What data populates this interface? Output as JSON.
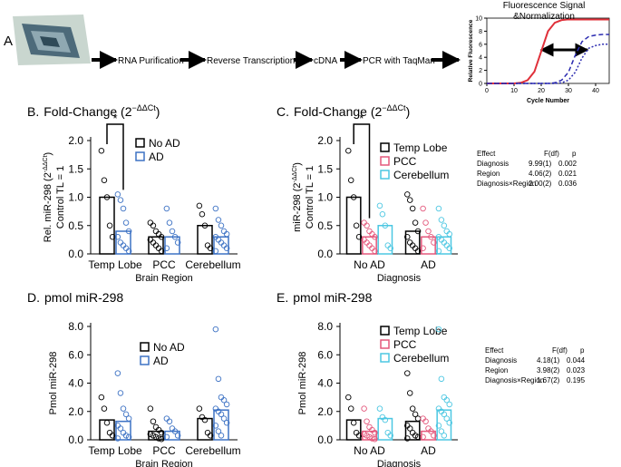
{
  "workflow": {
    "label": "A",
    "steps": [
      "RNA Purification",
      "Reverse Transcription",
      "cDNA",
      "PCR with TaqMan"
    ]
  },
  "chart_data": [
    {
      "type": "line",
      "title": "Fluorescence Signal",
      "subtitle": "&Normalization",
      "xlabel": "Cycle Number",
      "ylabel": "Relative Fluorescence",
      "x": [
        0,
        2.5,
        5,
        7.5,
        10,
        12.5,
        15,
        17.5,
        20,
        22.5,
        25,
        27.5,
        30,
        32.5,
        35,
        37.5,
        40,
        42.5,
        45
      ],
      "xlim": [
        0,
        45
      ],
      "ylim": [
        0,
        10
      ],
      "xticks": [
        0,
        10,
        20,
        30,
        40
      ],
      "yticks": [
        0,
        2,
        4,
        6,
        8,
        10
      ],
      "series": [
        {
          "color": "#e0303a",
          "style": "solid",
          "values": [
            0,
            0,
            0,
            0,
            0,
            0.1,
            0.5,
            1.8,
            4.9,
            8.0,
            9.3,
            9.7,
            9.8,
            9.8,
            9.8,
            9.8,
            9.8,
            9.8,
            9.8
          ]
        },
        {
          "color": "#2b2bb0",
          "style": "dashed",
          "values": [
            0,
            0,
            0,
            0,
            0,
            0,
            0,
            0,
            0,
            0,
            0.1,
            0.5,
            1.7,
            4.3,
            6.4,
            7.2,
            7.4,
            7.5,
            7.5
          ]
        },
        {
          "color": "#2b2bb0",
          "style": "dotted",
          "values": [
            0,
            0,
            0,
            0,
            0,
            0,
            0,
            0,
            0,
            0,
            0,
            0.1,
            0.5,
            1.7,
            3.9,
            5.4,
            5.8,
            6.0,
            6.0
          ]
        }
      ]
    },
    {
      "type": "bar-scatter",
      "panel": "B.",
      "title": "Fold-Change (2",
      "title_superscript": "−ΔΔCt",
      "title_end": ")",
      "ylabel": "Rel. miR-298 (2",
      "ylabel_superscript": "-ΔΔCt",
      "ylabel_end": ")",
      "ylabel2": "Control TL = 1",
      "xlabel": "Brain Region",
      "annotation": "*",
      "categories": [
        "Temp Lobe",
        "PCC",
        "Cerebellum"
      ],
      "ylim": [
        0,
        2
      ],
      "yticks": [
        {
          "value": 0,
          "label": "0.0"
        },
        0.5,
        {
          "value": 1,
          "label": "1.0"
        },
        1.5,
        {
          "value": 2,
          "label": "2.0"
        }
      ],
      "series": [
        {
          "name": "No AD",
          "color": "#000000",
          "values": [
            1.0,
            0.3,
            0.5
          ],
          "points": [
            [
              1.82,
              1.3,
              1.0,
              0.5,
              0.3
            ],
            [
              0.55,
              0.5,
              0.4,
              0.35,
              0.3,
              0.25,
              0.2,
              0.15,
              0.1,
              0.05
            ],
            [
              0.85,
              0.7,
              0.5,
              0.15,
              0.1
            ]
          ]
        },
        {
          "name": "AD",
          "color": "#3d72c4",
          "values": [
            0.4,
            0.3,
            0.3
          ],
          "points": [
            [
              1.05,
              0.95,
              0.8,
              0.55,
              0.4,
              0.3,
              0.2,
              0.15,
              0.1,
              0.05
            ],
            [
              0.8,
              0.55,
              0.4,
              0.3,
              0.2,
              0.1
            ],
            [
              0.8,
              0.6,
              0.5,
              0.4,
              0.35,
              0.3,
              0.25,
              0.2,
              0.15,
              0.1,
              0.05
            ]
          ]
        }
      ]
    },
    {
      "type": "bar-scatter",
      "panel": "C.",
      "title": "Fold-Change (2",
      "title_superscript": "−ΔΔCt",
      "title_end": ")",
      "ylabel": "miR-298 (2",
      "ylabel_superscript": "-ΔΔCt",
      "ylabel_end": ")",
      "ylabel2": "Control TL = 1",
      "xlabel": "Diagnosis",
      "annotation": "*",
      "categories": [
        "No AD",
        "AD"
      ],
      "ylim": [
        0,
        2
      ],
      "yticks": [
        {
          "value": 0,
          "label": "0.0"
        },
        0.5,
        {
          "value": 1,
          "label": "1.0"
        },
        1.5,
        {
          "value": 2,
          "label": "2.0"
        }
      ],
      "series": [
        {
          "name": "Temp Lobe",
          "color": "#000000",
          "values": [
            1.0,
            0.4
          ],
          "points": [
            [
              1.82,
              1.3,
              1.0,
              0.5,
              0.3
            ],
            [
              1.05,
              0.95,
              0.8,
              0.55,
              0.4,
              0.3,
              0.2,
              0.15,
              0.1,
              0.05
            ]
          ]
        },
        {
          "name": "PCC",
          "color": "#e4587c",
          "values": [
            0.3,
            0.3
          ],
          "points": [
            [
              0.55,
              0.5,
              0.4,
              0.35,
              0.3,
              0.25,
              0.2,
              0.15,
              0.1,
              0.05
            ],
            [
              0.8,
              0.55,
              0.4,
              0.3,
              0.2,
              0.1
            ]
          ]
        },
        {
          "name": "Cerebellum",
          "color": "#4cc7e2",
          "values": [
            0.5,
            0.3
          ],
          "points": [
            [
              0.85,
              0.7,
              0.5,
              0.15,
              0.1
            ],
            [
              0.8,
              0.6,
              0.5,
              0.4,
              0.35,
              0.3,
              0.25,
              0.2,
              0.15,
              0.1,
              0.05
            ]
          ]
        }
      ]
    },
    {
      "type": "bar-scatter",
      "panel": "D.",
      "title": "pmol miR-298",
      "ylabel": "Pmol miR-298",
      "xlabel": "Brain Region",
      "categories": [
        "Temp Lobe",
        "PCC",
        "Cerebellum"
      ],
      "ylim": [
        0,
        8
      ],
      "yticks": [
        {
          "value": 0,
          "label": "0.0"
        },
        {
          "value": 2,
          "label": "2.0"
        },
        {
          "value": 4,
          "label": "4.0"
        },
        {
          "value": 6,
          "label": "6.0"
        },
        {
          "value": 8,
          "label": "8.0"
        }
      ],
      "series": [
        {
          "name": "No AD",
          "color": "#000000",
          "values": [
            1.4,
            0.6,
            1.5
          ],
          "points": [
            [
              3.0,
              2.2,
              1.2,
              0.5,
              0.3
            ],
            [
              2.2,
              1.3,
              0.9,
              0.7,
              0.5,
              0.4,
              0.3,
              0.2,
              0.1,
              0.05
            ],
            [
              2.2,
              1.6,
              1.4,
              0.5,
              0.3
            ]
          ]
        },
        {
          "name": "AD",
          "color": "#3d72c4",
          "values": [
            1.3,
            0.6,
            2.1
          ],
          "points": [
            [
              4.7,
              3.3,
              2.2,
              1.8,
              1.5,
              1.0,
              0.8,
              0.5,
              0.3,
              0.2,
              0.1
            ],
            [
              1.5,
              1.3,
              0.8,
              0.6,
              0.3,
              0.2
            ],
            [
              7.8,
              4.3,
              3.0,
              2.8,
              2.5,
              2.2,
              2.0,
              1.8,
              1.5,
              1.2,
              1.0,
              0.6,
              0.3
            ]
          ]
        }
      ]
    },
    {
      "type": "bar-scatter",
      "panel": "E.",
      "title": "pmol miR-298",
      "ylabel": "Pmol miR-298",
      "xlabel": "Diagnosis",
      "categories": [
        "No AD",
        "AD"
      ],
      "ylim": [
        0,
        8
      ],
      "yticks": [
        {
          "value": 0,
          "label": "0.0"
        },
        {
          "value": 2,
          "label": "2.0"
        },
        {
          "value": 4,
          "label": "4.0"
        },
        {
          "value": 6,
          "label": "6.0"
        },
        {
          "value": 8,
          "label": "8.0"
        }
      ],
      "series": [
        {
          "name": "Temp Lobe",
          "color": "#000000",
          "values": [
            1.4,
            1.3
          ],
          "points": [
            [
              3.0,
              2.2,
              1.2,
              0.5,
              0.3
            ],
            [
              4.7,
              3.3,
              2.2,
              1.8,
              1.5,
              1.0,
              0.8,
              0.5,
              0.3,
              0.2,
              0.1
            ]
          ]
        },
        {
          "name": "PCC",
          "color": "#e4587c",
          "values": [
            0.6,
            0.6
          ],
          "points": [
            [
              2.2,
              1.3,
              0.9,
              0.7,
              0.5,
              0.4,
              0.3,
              0.2,
              0.1,
              0.05
            ],
            [
              1.5,
              1.3,
              0.8,
              0.6,
              0.3,
              0.2
            ]
          ]
        },
        {
          "name": "Cerebellum",
          "color": "#4cc7e2",
          "values": [
            1.5,
            2.1
          ],
          "points": [
            [
              2.2,
              1.6,
              1.4,
              0.5,
              0.3
            ],
            [
              7.8,
              4.3,
              3.0,
              2.8,
              2.5,
              2.2,
              2.0,
              1.8,
              1.5,
              1.2,
              1.0,
              0.6,
              0.3
            ]
          ]
        }
      ]
    }
  ],
  "tables": [
    {
      "header": [
        "Effect",
        "F(df)",
        "p"
      ],
      "rows": [
        [
          "Diagnosis",
          "9.99(1)",
          "0.002"
        ],
        [
          "Region",
          "4.06(2)",
          "0.021"
        ],
        [
          "Diagnosis×Region",
          "2.00(2)",
          "0.036"
        ]
      ]
    },
    {
      "header": [
        "Effect",
        "F(df)",
        "p"
      ],
      "rows": [
        [
          "Diagnosis",
          "4.18(1)",
          "0.044"
        ],
        [
          "Region",
          "3.98(2)",
          "0.023"
        ],
        [
          "Diagnosis×Region",
          "1.67(2)",
          "0.195"
        ]
      ]
    }
  ]
}
